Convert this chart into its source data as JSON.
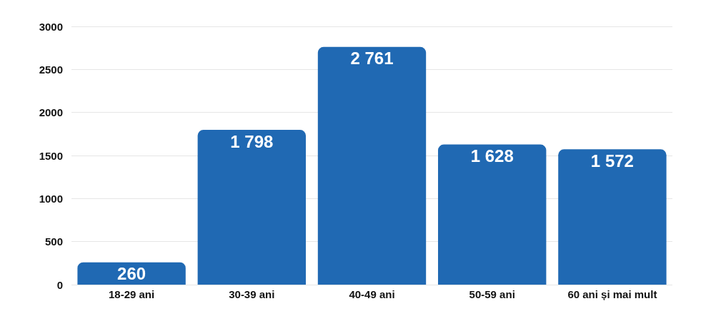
{
  "chart_data": {
    "type": "bar",
    "categories": [
      "18-29 ani",
      "30-39 ani",
      "40-49 ani",
      "50-59 ani",
      "60 ani și mai mult"
    ],
    "values": [
      260,
      1798,
      2761,
      1628,
      1572
    ],
    "value_labels": [
      "260",
      "1 798",
      "2 761",
      "1 628",
      "1 572"
    ],
    "color": "#2069b3",
    "ylim": [
      0,
      3000
    ],
    "yticks": [
      0,
      500,
      1000,
      1500,
      2000,
      2500,
      3000
    ],
    "grid": "y"
  }
}
